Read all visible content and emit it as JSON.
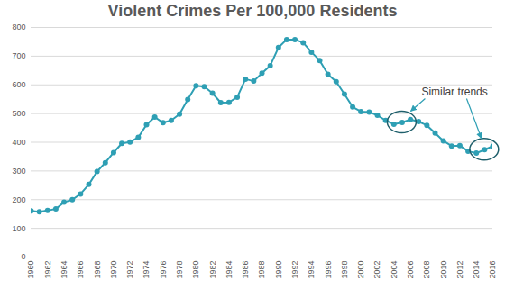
{
  "chart_data": {
    "type": "line",
    "title": "Violent Crimes Per 100,000 Residents",
    "x": [
      1960,
      1961,
      1962,
      1963,
      1964,
      1965,
      1966,
      1967,
      1968,
      1969,
      1970,
      1971,
      1972,
      1973,
      1974,
      1975,
      1976,
      1977,
      1978,
      1979,
      1980,
      1981,
      1982,
      1983,
      1984,
      1985,
      1986,
      1987,
      1988,
      1989,
      1990,
      1991,
      1992,
      1993,
      1994,
      1995,
      1996,
      1997,
      1998,
      1999,
      2000,
      2001,
      2002,
      2003,
      2004,
      2005,
      2006,
      2007,
      2008,
      2009,
      2010,
      2011,
      2012,
      2013,
      2014,
      2015,
      2016
    ],
    "values": [
      161,
      158,
      162,
      168,
      191,
      200,
      220,
      253,
      298,
      329,
      364,
      396,
      401,
      417,
      461,
      488,
      468,
      476,
      498,
      549,
      597,
      594,
      571,
      538,
      539,
      557,
      620,
      613,
      641,
      667,
      730,
      758,
      758,
      747,
      714,
      685,
      637,
      611,
      568,
      523,
      507,
      505,
      494,
      476,
      463,
      469,
      479,
      472,
      459,
      432,
      405,
      387,
      388,
      369,
      362,
      374,
      386
    ],
    "color": "#2e9fb4",
    "marker": "circle",
    "xlim": [
      1960,
      2016
    ],
    "xticks": [
      1960,
      1962,
      1964,
      1966,
      1968,
      1970,
      1972,
      1974,
      1976,
      1978,
      1980,
      1982,
      1984,
      1986,
      1988,
      1990,
      1992,
      1994,
      1996,
      1998,
      2000,
      2002,
      2004,
      2006,
      2008,
      2010,
      2012,
      2014,
      2016
    ],
    "ylim": [
      0,
      800
    ],
    "yticks": [
      0,
      100,
      200,
      300,
      400,
      500,
      600,
      700,
      800
    ],
    "grid": true,
    "annotations": [
      {
        "text": "Similar trends",
        "x": [
          2005,
          2015
        ]
      }
    ]
  }
}
